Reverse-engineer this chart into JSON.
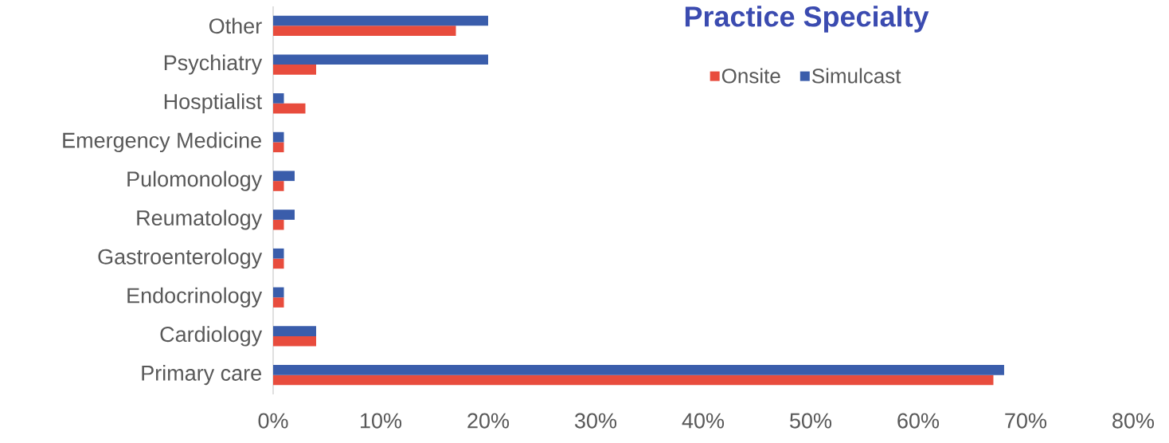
{
  "chart_data": {
    "type": "bar",
    "orientation": "horizontal",
    "title": "Practice Specialty",
    "categories": [
      "Other",
      "Psychiatry",
      "Hosptialist",
      "Emergency Medicine",
      "Pulomonology",
      "Reumatology",
      "Gastroenterology",
      "Endocrinology",
      "Cardiology",
      "Primary care"
    ],
    "series": [
      {
        "name": "Onsite",
        "color": "#e84c3d",
        "values": [
          17,
          4,
          3,
          1,
          1,
          1,
          1,
          1,
          4,
          67
        ]
      },
      {
        "name": "Simulcast",
        "color": "#3a5dab",
        "values": [
          20,
          20,
          1,
          1,
          2,
          2,
          1,
          1,
          4,
          68
        ]
      }
    ],
    "xlim": [
      0,
      80
    ],
    "xticks": [
      {
        "value": 0,
        "label": "0%"
      },
      {
        "value": 10,
        "label": "10%"
      },
      {
        "value": 20,
        "label": "20%"
      },
      {
        "value": 30,
        "label": "30%"
      },
      {
        "value": 40,
        "label": "40%"
      },
      {
        "value": 50,
        "label": "50%"
      },
      {
        "value": 60,
        "label": "60%"
      },
      {
        "value": 70,
        "label": "70%"
      },
      {
        "value": 80,
        "label": "80%"
      }
    ],
    "legend": "top right",
    "grid": false
  }
}
